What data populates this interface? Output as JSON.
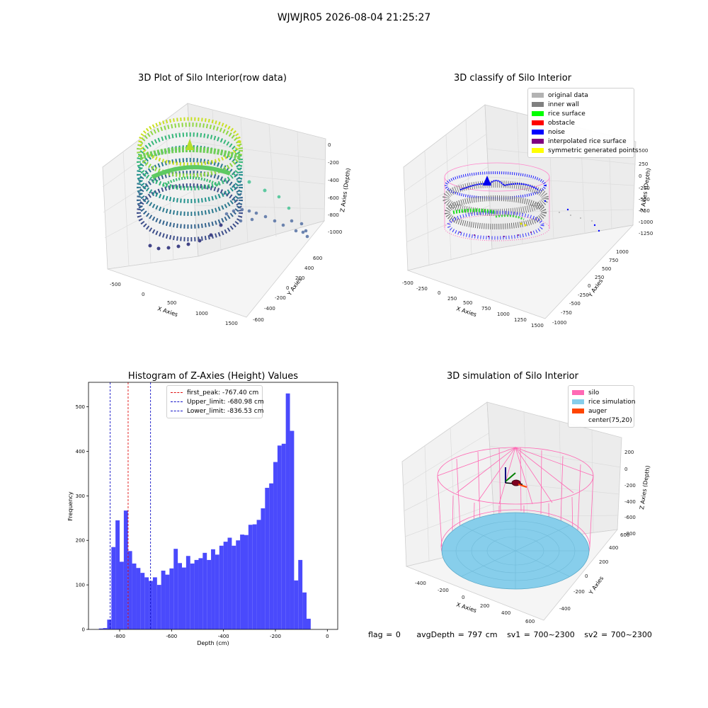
{
  "figure": {
    "suptitle": "WJWJR05 2026-08-04 21:25:27",
    "status": {
      "flag": "flag = 0",
      "avg_depth": "avgDepth = 797 cm",
      "sv1": "sv1 = 700~2300",
      "sv2": "sv2 = 700~2300"
    }
  },
  "chart_data": [
    {
      "type": "scatter",
      "projection": "3d",
      "title": "3D Plot of Silo Interior(row data)",
      "xlabel": "X Axies",
      "ylabel": "Y Axies",
      "zlabel": "Z Axies (Depth)",
      "x_ticks": [
        "-500",
        "0",
        "500",
        "1000",
        "1500"
      ],
      "y_ticks": [
        "-600",
        "-400",
        "-200",
        "0",
        "200",
        "400",
        "600"
      ],
      "z_ticks": [
        "-1000",
        "-800",
        "-600",
        "-400",
        "-200",
        "0"
      ],
      "colormap": "viridis",
      "xlim": [
        -600,
        1500
      ],
      "ylim": [
        -650,
        650
      ],
      "zlim": [
        -1100,
        50
      ],
      "grid": true
    },
    {
      "type": "scatter",
      "projection": "3d",
      "title": "3D classify of Silo Interior",
      "xlabel": "X Axies",
      "ylabel": "Y Axies",
      "zlabel": "Z Axies (Depth)",
      "x_ticks": [
        "-500",
        "-250",
        "0",
        "250",
        "500",
        "750",
        "1000",
        "1250",
        "1500"
      ],
      "y_ticks": [
        "-1000",
        "-750",
        "-500",
        "-250",
        "0",
        "250",
        "500",
        "750",
        "1000"
      ],
      "z_ticks": [
        "-1250",
        "-1000",
        "-750",
        "-500",
        "-250",
        "0",
        "250",
        "500"
      ],
      "legend_position": "top-right",
      "legend": [
        {
          "label": "original data",
          "color": "#b3b3b3"
        },
        {
          "label": "inner wall",
          "color": "#808080"
        },
        {
          "label": "rice surface",
          "color": "#00ff00"
        },
        {
          "label": "obstacle",
          "color": "#ff0000"
        },
        {
          "label": "noise",
          "color": "#0000ff"
        },
        {
          "label": "interpolated rice surface",
          "color": "#800080"
        },
        {
          "label": "symmetric generated points",
          "color": "#ffff00"
        }
      ],
      "grid": true
    },
    {
      "type": "bar",
      "subtype": "histogram",
      "title": "Histogram of Z-Axies (Height) Values",
      "xlabel": "Depth (cm)",
      "ylabel": "Frequency",
      "xlim": [
        -920,
        40
      ],
      "ylim": [
        0,
        555
      ],
      "x_ticks": [
        -800,
        -600,
        -400,
        -200,
        0
      ],
      "y_ticks": [
        0,
        100,
        200,
        300,
        400,
        500
      ],
      "bar_color": "#4a4afc",
      "bin_start": -880,
      "bin_width": 16,
      "values": [
        2,
        3,
        22,
        185,
        245,
        152,
        267,
        176,
        148,
        138,
        127,
        117,
        109,
        117,
        100,
        132,
        123,
        137,
        181,
        149,
        139,
        165,
        148,
        156,
        160,
        172,
        156,
        180,
        168,
        188,
        197,
        206,
        188,
        200,
        213,
        212,
        235,
        236,
        246,
        272,
        318,
        328,
        376,
        413,
        417,
        530,
        446,
        110,
        156,
        83,
        24
      ],
      "lines": [
        {
          "label": "first_peak: -767.40 cm",
          "x": -767.4,
          "color": "#e01010"
        },
        {
          "label": "Upper_limit: -680.98 cm",
          "x": -680.98,
          "color": "#1414c8"
        },
        {
          "label": "Lower_limit: -836.53 cm",
          "x": -836.53,
          "color": "#1414c8"
        }
      ],
      "legend_position": "top-center"
    },
    {
      "type": "scatter",
      "projection": "3d",
      "title": "3D simulation of Silo Interior",
      "xlabel": "X Axies",
      "ylabel": "Y Axies",
      "zlabel": "Z Axies (Depth)",
      "x_ticks": [
        "-400",
        "-200",
        "0",
        "200",
        "400",
        "600"
      ],
      "y_ticks": [
        "-400",
        "-200",
        "0",
        "200",
        "400",
        "600"
      ],
      "z_ticks": [
        "-800",
        "-600",
        "-400",
        "-200",
        "0",
        "200"
      ],
      "legend_position": "top-right",
      "legend": [
        {
          "label": "silo",
          "color": "#ff69b4"
        },
        {
          "label": "rice simulation",
          "color": "#87ceeb"
        },
        {
          "label": "auger",
          "color": "#ff4500"
        },
        {
          "label": "center(75,20)",
          "color": "#ffffff"
        }
      ],
      "grid": true
    }
  ]
}
